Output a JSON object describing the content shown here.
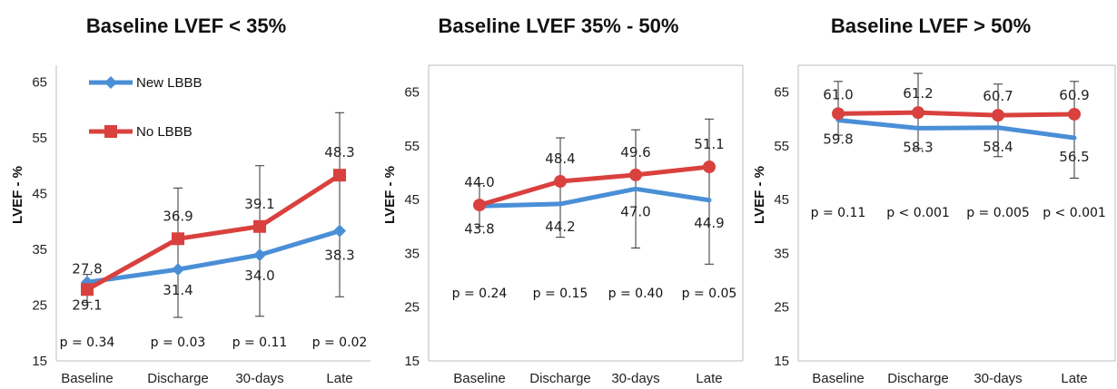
{
  "chart_data": [
    {
      "type": "line",
      "title": "Baseline LVEF < 35%",
      "ylabel": "LVEF - %",
      "categories": [
        "Baseline",
        "Discharge",
        "30-days",
        "Late"
      ],
      "yticks": [
        15,
        25,
        35,
        45,
        55,
        65
      ],
      "ylim": [
        15,
        65
      ],
      "legend": "top-left",
      "series": [
        {
          "name": "New LBBB",
          "color": "#4a8fd6",
          "marker": "diamond",
          "values": [
            29.1,
            31.4,
            34.0,
            38.3
          ],
          "labels": [
            "29.1",
            "31.4",
            "34.0",
            "38.3"
          ]
        },
        {
          "name": "No LBBB",
          "color": "#d9413e",
          "marker": "square",
          "values": [
            27.8,
            36.9,
            39.1,
            48.3
          ],
          "labels": [
            "27.8",
            "36.9",
            "39.1",
            "48.3"
          ]
        }
      ],
      "errorbars": [
        [
          25.5,
          30.5
        ],
        [
          22.8,
          46.0
        ],
        [
          23.0,
          50.0
        ],
        [
          26.5,
          59.5
        ]
      ],
      "pvalues": [
        "p = 0.34",
        "p = 0.03",
        "p = 0.11",
        "p = 0.02"
      ]
    },
    {
      "type": "line",
      "title": "Baseline LVEF 35% - 50%",
      "ylabel": "LVEF - %",
      "categories": [
        "Baseline",
        "Discharge",
        "30-days",
        "Late"
      ],
      "yticks": [
        15,
        25,
        35,
        45,
        55,
        65
      ],
      "ylim": [
        15,
        70
      ],
      "series": [
        {
          "name": "New LBBB",
          "color": "#4a8fd6",
          "marker": "none",
          "values": [
            43.8,
            44.2,
            47.0,
            44.9
          ],
          "labels": [
            "43.8",
            "44.2",
            "47.0",
            "44.9"
          ]
        },
        {
          "name": "No LBBB",
          "color": "#d9413e",
          "marker": "circle",
          "values": [
            44.0,
            48.4,
            49.6,
            51.1
          ],
          "labels": [
            "44.0",
            "48.4",
            "49.6",
            "51.1"
          ]
        }
      ],
      "errorbars": [
        [
          40.0,
          48.0
        ],
        [
          38.0,
          56.5
        ],
        [
          36.0,
          58.0
        ],
        [
          33.0,
          60.0
        ]
      ],
      "pvalues": [
        "p = 0.24",
        "p = 0.15",
        "p = 0.40",
        "p = 0.05"
      ]
    },
    {
      "type": "line",
      "title": "Baseline LVEF > 50%",
      "ylabel": "LVEF - %",
      "categories": [
        "Baseline",
        "Discharge",
        "30-days",
        "Late"
      ],
      "yticks": [
        15,
        25,
        35,
        45,
        55,
        65
      ],
      "ylim": [
        15,
        70
      ],
      "series": [
        {
          "name": "New LBBB",
          "color": "#4a8fd6",
          "marker": "none",
          "values": [
            59.8,
            58.3,
            58.4,
            56.5
          ],
          "labels": [
            "59.8",
            "58.3",
            "58.4",
            "56.5"
          ]
        },
        {
          "name": "No LBBB",
          "color": "#d9413e",
          "marker": "circle",
          "values": [
            61.0,
            61.2,
            60.7,
            60.9
          ],
          "labels": [
            "61.0",
            "61.2",
            "60.7",
            "60.9"
          ]
        }
      ],
      "errorbars": [
        [
          57.0,
          67.0
        ],
        [
          54.5,
          68.5
        ],
        [
          53.0,
          66.5
        ],
        [
          49.0,
          67.0
        ]
      ],
      "pvalues": [
        "p = 0.11",
        "p < 0.001",
        "p = 0.005",
        "p < 0.001"
      ]
    }
  ]
}
